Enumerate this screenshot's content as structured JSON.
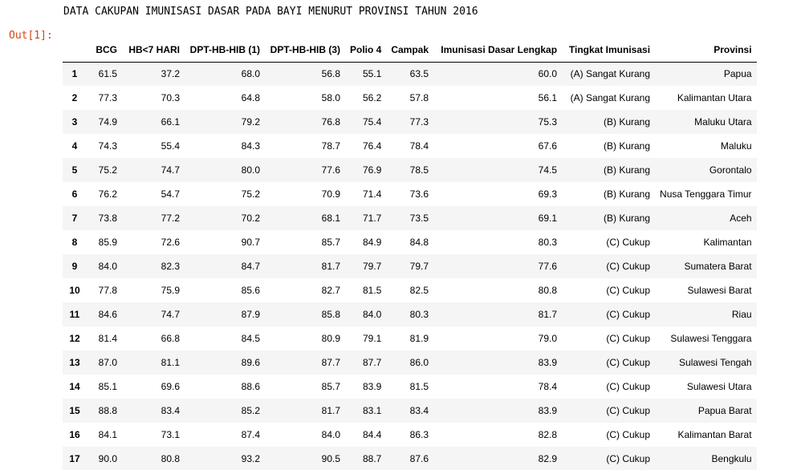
{
  "notebook": {
    "print_output": "DATA CAKUPAN IMUNISASI DASAR PADA BAYI MENURUT PROVINSI TAHUN 2016",
    "out_prompt": "Out[1]:"
  },
  "table": {
    "index_header": "",
    "columns": [
      "BCG",
      "HB<7 HARI",
      "DPT-HB-HIB (1)",
      "DPT-HB-HIB (3)",
      "Polio 4",
      "Campak",
      "Imunisasi Dasar Lengkap",
      "Tingkat Imunisasi",
      "Provinsi"
    ],
    "rows": [
      {
        "index": "1",
        "cells": [
          "61.5",
          "37.2",
          "68.0",
          "56.8",
          "55.1",
          "63.5",
          "60.0",
          "(A) Sangat Kurang",
          "Papua"
        ]
      },
      {
        "index": "2",
        "cells": [
          "77.3",
          "70.3",
          "64.8",
          "58.0",
          "56.2",
          "57.8",
          "56.1",
          "(A) Sangat Kurang",
          "Kalimantan Utara"
        ]
      },
      {
        "index": "3",
        "cells": [
          "74.9",
          "66.1",
          "79.2",
          "76.8",
          "75.4",
          "77.3",
          "75.3",
          "(B) Kurang",
          "Maluku Utara"
        ]
      },
      {
        "index": "4",
        "cells": [
          "74.3",
          "55.4",
          "84.3",
          "78.7",
          "76.4",
          "78.4",
          "67.6",
          "(B) Kurang",
          "Maluku"
        ]
      },
      {
        "index": "5",
        "cells": [
          "75.2",
          "74.7",
          "80.0",
          "77.6",
          "76.9",
          "78.5",
          "74.5",
          "(B) Kurang",
          "Gorontalo"
        ]
      },
      {
        "index": "6",
        "cells": [
          "76.2",
          "54.7",
          "75.2",
          "70.9",
          "71.4",
          "73.6",
          "69.3",
          "(B) Kurang",
          "Nusa Tenggara Timur"
        ]
      },
      {
        "index": "7",
        "cells": [
          "73.8",
          "77.2",
          "70.2",
          "68.1",
          "71.7",
          "73.5",
          "69.1",
          "(B) Kurang",
          "Aceh"
        ]
      },
      {
        "index": "8",
        "cells": [
          "85.9",
          "72.6",
          "90.7",
          "85.7",
          "84.9",
          "84.8",
          "80.3",
          "(C) Cukup",
          "Kalimantan"
        ]
      },
      {
        "index": "9",
        "cells": [
          "84.0",
          "82.3",
          "84.7",
          "81.7",
          "79.7",
          "79.7",
          "77.6",
          "(C) Cukup",
          "Sumatera Barat"
        ]
      },
      {
        "index": "10",
        "cells": [
          "77.8",
          "75.9",
          "85.6",
          "82.7",
          "81.5",
          "82.5",
          "80.8",
          "(C) Cukup",
          "Sulawesi Barat"
        ]
      },
      {
        "index": "11",
        "cells": [
          "84.6",
          "74.7",
          "87.9",
          "85.8",
          "84.0",
          "80.3",
          "81.7",
          "(C) Cukup",
          "Riau"
        ]
      },
      {
        "index": "12",
        "cells": [
          "81.4",
          "66.8",
          "84.5",
          "80.9",
          "79.1",
          "81.9",
          "79.0",
          "(C) Cukup",
          "Sulawesi Tenggara"
        ]
      },
      {
        "index": "13",
        "cells": [
          "87.0",
          "81.1",
          "89.6",
          "87.7",
          "87.7",
          "86.0",
          "83.9",
          "(C) Cukup",
          "Sulawesi Tengah"
        ]
      },
      {
        "index": "14",
        "cells": [
          "85.1",
          "69.6",
          "88.6",
          "85.7",
          "83.9",
          "81.5",
          "78.4",
          "(C) Cukup",
          "Sulawesi Utara"
        ]
      },
      {
        "index": "15",
        "cells": [
          "88.8",
          "83.4",
          "85.2",
          "81.7",
          "83.1",
          "83.4",
          "83.9",
          "(C) Cukup",
          "Papua Barat"
        ]
      },
      {
        "index": "16",
        "cells": [
          "84.1",
          "73.1",
          "87.4",
          "84.0",
          "84.4",
          "86.3",
          "82.8",
          "(C) Cukup",
          "Kalimantan Barat"
        ]
      },
      {
        "index": "17",
        "cells": [
          "90.0",
          "80.8",
          "93.2",
          "90.5",
          "88.7",
          "87.6",
          "82.9",
          "(C) Cukup",
          "Bengkulu"
        ]
      }
    ]
  }
}
